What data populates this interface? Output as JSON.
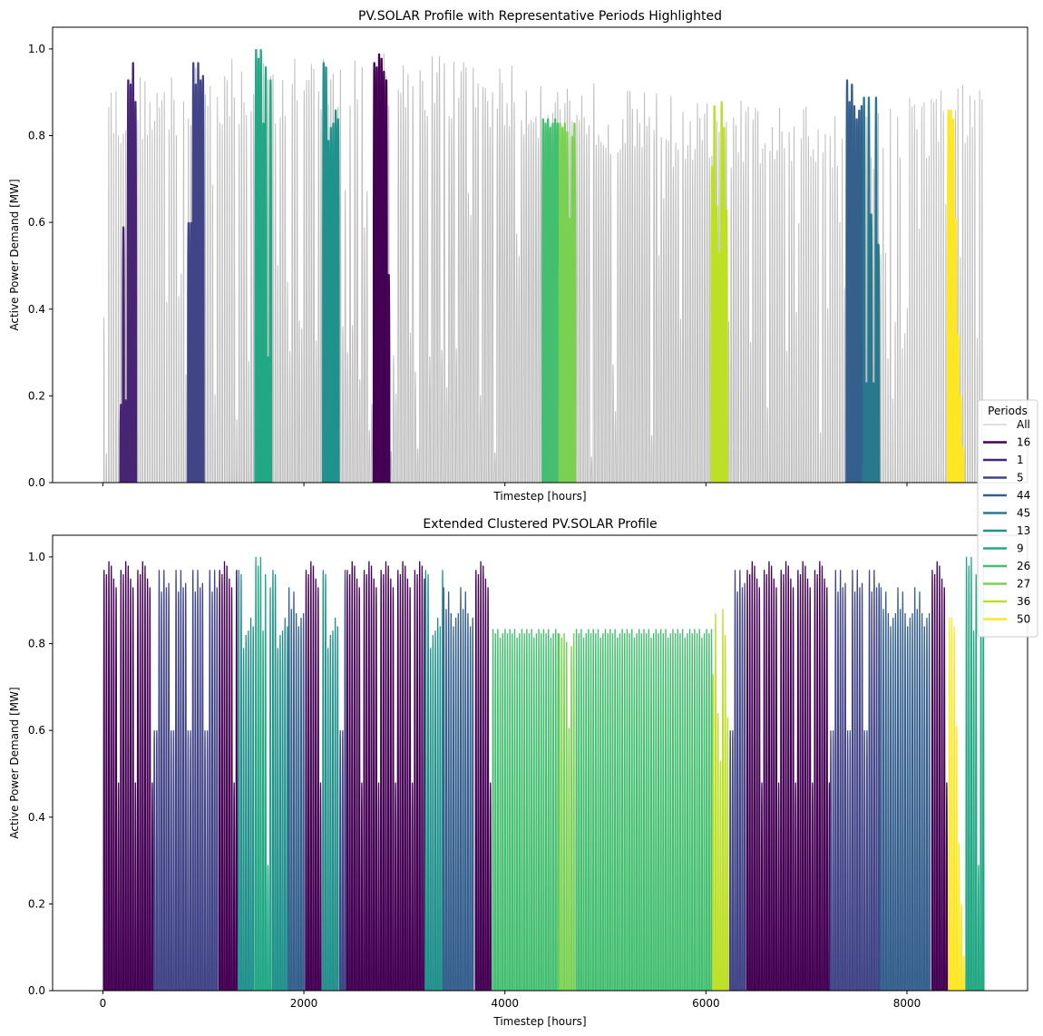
{
  "chart_data": [
    {
      "type": "line",
      "title": "PV.SOLAR Profile with Representative Periods Highlighted",
      "xlabel": "Timestep [hours]",
      "ylabel": "Active Power Demand [MW]",
      "xlim": [
        -500,
        9200
      ],
      "ylim": [
        0.0,
        1.05
      ],
      "xticks": [
        0,
        2000,
        4000,
        6000,
        8000
      ],
      "xtick_labels_shown": false,
      "yticks": [
        "0.0",
        "0.2",
        "0.4",
        "0.6",
        "0.8",
        "1.0"
      ],
      "background_series": {
        "name": "All",
        "color": "#bfbfbf",
        "x_range": [
          0,
          8760
        ],
        "profile": "daily solar cycle, peaks 0.78-1.0"
      },
      "highlighted_periods": [
        {
          "period": "16",
          "color": "#440154",
          "x_range": [
            2688,
            2856
          ],
          "daily_peaks": [
            0.97,
            0.96,
            0.99,
            0.98,
            0.95,
            0.93,
            0.48
          ]
        },
        {
          "period": "1",
          "color": "#482475",
          "x_range": [
            168,
            336
          ],
          "daily_peaks": [
            0.18,
            0.59,
            0.19,
            0.93,
            0.92,
            0.97,
            0.88
          ]
        },
        {
          "period": "5",
          "color": "#414487",
          "x_range": [
            840,
            1008
          ],
          "daily_peaks": [
            0.6,
            0.6,
            0.97,
            0.92,
            0.97,
            0.93,
            0.94
          ]
        },
        {
          "period": "44",
          "color": "#355f8d",
          "x_range": [
            7392,
            7560
          ],
          "daily_peaks": [
            0.93,
            0.88,
            0.92,
            0.87,
            0.84,
            0.86,
            0.87
          ]
        },
        {
          "period": "45",
          "color": "#2a788e",
          "x_range": [
            7560,
            7728
          ],
          "daily_peaks": [
            0.89,
            0.23,
            0.89,
            0.62,
            0.23,
            0.89,
            0.55
          ]
        },
        {
          "period": "13",
          "color": "#21918c",
          "x_range": [
            2184,
            2352
          ],
          "daily_peaks": [
            0.97,
            0.96,
            0.79,
            0.82,
            0.83,
            0.86,
            0.84
          ]
        },
        {
          "period": "9",
          "color": "#22a884",
          "x_range": [
            1512,
            1680
          ],
          "daily_peaks": [
            1.0,
            0.98,
            1.0,
            0.83,
            0.96,
            0.29,
            0.93
          ]
        },
        {
          "period": "26",
          "color": "#44bf70",
          "x_range": [
            4368,
            4536
          ],
          "daily_peaks": [
            0.84,
            0.83,
            0.84,
            0.82,
            0.83,
            0.84,
            0.83
          ]
        },
        {
          "period": "27",
          "color": "#7ad151",
          "x_range": [
            4536,
            4704
          ],
          "daily_peaks": [
            0.83,
            0.82,
            0.83,
            0.81,
            0.61,
            0.8,
            0.83
          ]
        },
        {
          "period": "36",
          "color": "#bddf26",
          "x_range": [
            6048,
            6216
          ],
          "daily_peaks": [
            0.73,
            0.87,
            0.64,
            0.53,
            0.88,
            0.82,
            0.63
          ]
        },
        {
          "period": "50",
          "color": "#fde725",
          "x_range": [
            8400,
            8568
          ],
          "daily_peaks": [
            0.86,
            0.86,
            0.84,
            0.61,
            0.34,
            0.2,
            0.08
          ]
        }
      ]
    },
    {
      "type": "line",
      "title": "Extended Clustered PV.SOLAR Profile",
      "xlabel": "Timestep [hours]",
      "ylabel": "Active Power Demand [MW]",
      "xlim": [
        -500,
        9200
      ],
      "ylim": [
        0.0,
        1.05
      ],
      "xticks": [
        "0",
        "2000",
        "4000",
        "6000",
        "8000"
      ],
      "yticks": [
        "0.0",
        "0.2",
        "0.4",
        "0.6",
        "0.8",
        "1.0"
      ],
      "segments": [
        {
          "period": "16",
          "x_range": [
            0,
            500
          ]
        },
        {
          "period": "5",
          "x_range": [
            500,
            1150
          ]
        },
        {
          "period": "16",
          "x_range": [
            1150,
            1340
          ]
        },
        {
          "period": "13",
          "x_range": [
            1340,
            1510
          ]
        },
        {
          "period": "9",
          "x_range": [
            1510,
            1680
          ]
        },
        {
          "period": "13",
          "x_range": [
            1680,
            1840
          ]
        },
        {
          "period": "44",
          "x_range": [
            1840,
            2010
          ]
        },
        {
          "period": "16",
          "x_range": [
            2010,
            2180
          ]
        },
        {
          "period": "13",
          "x_range": [
            2180,
            2350
          ]
        },
        {
          "period": "5",
          "x_range": [
            2350,
            2420
          ]
        },
        {
          "period": "16",
          "x_range": [
            2420,
            3200
          ]
        },
        {
          "period": "13",
          "x_range": [
            3200,
            3380
          ]
        },
        {
          "period": "44",
          "x_range": [
            3380,
            3700
          ]
        },
        {
          "period": "16",
          "x_range": [
            3700,
            3870
          ]
        },
        {
          "period": "26",
          "x_range": [
            3870,
            4530
          ]
        },
        {
          "period": "27",
          "x_range": [
            4530,
            4700
          ]
        },
        {
          "period": "26",
          "x_range": [
            4700,
            6060
          ]
        },
        {
          "period": "36",
          "x_range": [
            6060,
            6230
          ]
        },
        {
          "period": "5",
          "x_range": [
            6230,
            6400
          ]
        },
        {
          "period": "16",
          "x_range": [
            6400,
            7230
          ]
        },
        {
          "period": "5",
          "x_range": [
            7230,
            7730
          ]
        },
        {
          "period": "44",
          "x_range": [
            7730,
            8240
          ]
        },
        {
          "period": "16",
          "x_range": [
            8240,
            8410
          ]
        },
        {
          "period": "50",
          "x_range": [
            8410,
            8580
          ]
        },
        {
          "period": "9",
          "x_range": [
            8580,
            8760
          ]
        }
      ]
    }
  ],
  "legend": {
    "title": "Periods",
    "placement": "right",
    "entries": [
      {
        "label": "All",
        "color": "#bfbfbf"
      },
      {
        "label": "16",
        "color": "#440154"
      },
      {
        "label": "1",
        "color": "#482475"
      },
      {
        "label": "5",
        "color": "#414487"
      },
      {
        "label": "44",
        "color": "#355f8d"
      },
      {
        "label": "45",
        "color": "#2a788e"
      },
      {
        "label": "13",
        "color": "#21918c"
      },
      {
        "label": "9",
        "color": "#22a884"
      },
      {
        "label": "26",
        "color": "#44bf70"
      },
      {
        "label": "27",
        "color": "#7ad151"
      },
      {
        "label": "36",
        "color": "#bddf26"
      },
      {
        "label": "50",
        "color": "#fde725"
      }
    ]
  }
}
